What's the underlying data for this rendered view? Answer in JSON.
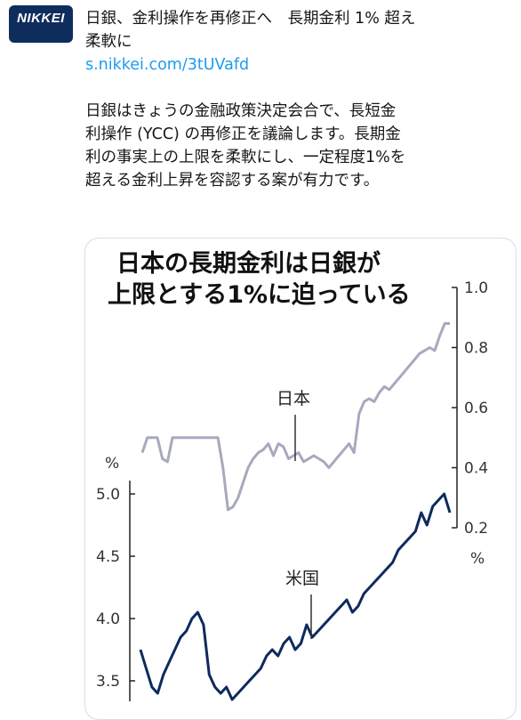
{
  "account": {
    "avatar_label": "NIKKEI"
  },
  "tweet": {
    "headline_line1": "日銀、金利操作を再修正へ　長期金利 1% 超え",
    "headline_line2": "柔軟に",
    "link": "s.nikkei.com/3tUVafd",
    "body_lines": [
      "日銀はきょうの金融政策決定会合で、長短金",
      "利操作 (YCC) の再修正を議論します。長期金",
      "利の事実上の上限を柔軟にし、一定程度1%を",
      "超える金利上昇を容認する案が有力です。"
    ]
  },
  "colors": {
    "japan_line": "#a7a9be",
    "us_line": "#0d2a5c",
    "brand": "#0f2d5c",
    "link": "#1d9bf0"
  },
  "chart_data": {
    "type": "line",
    "title_lines": [
      "日本の長期金利は日銀が",
      "上限とする1%に迫っている"
    ],
    "series": [
      {
        "name": "日本",
        "axis": "right",
        "values": [
          0.45,
          0.5,
          0.5,
          0.5,
          0.43,
          0.42,
          0.5,
          0.5,
          0.5,
          0.5,
          0.5,
          0.5,
          0.5,
          0.5,
          0.5,
          0.5,
          0.4,
          0.26,
          0.27,
          0.3,
          0.35,
          0.4,
          0.43,
          0.45,
          0.46,
          0.48,
          0.44,
          0.48,
          0.47,
          0.43,
          0.44,
          0.45,
          0.42,
          0.43,
          0.44,
          0.43,
          0.42,
          0.4,
          0.42,
          0.44,
          0.46,
          0.48,
          0.45,
          0.58,
          0.62,
          0.63,
          0.62,
          0.65,
          0.67,
          0.66,
          0.68,
          0.7,
          0.72,
          0.74,
          0.76,
          0.78,
          0.79,
          0.8,
          0.79,
          0.84,
          0.88,
          0.88
        ]
      },
      {
        "name": "米国",
        "axis": "left",
        "values": [
          3.75,
          3.6,
          3.45,
          3.4,
          3.55,
          3.65,
          3.75,
          3.85,
          3.9,
          4.0,
          4.05,
          3.95,
          3.55,
          3.45,
          3.4,
          3.45,
          3.35,
          3.4,
          3.45,
          3.5,
          3.55,
          3.6,
          3.7,
          3.75,
          3.7,
          3.8,
          3.85,
          3.75,
          3.8,
          3.95,
          3.85,
          3.9,
          3.95,
          4.0,
          4.05,
          4.1,
          4.15,
          4.05,
          4.1,
          4.2,
          4.25,
          4.3,
          4.35,
          4.4,
          4.45,
          4.55,
          4.6,
          4.65,
          4.7,
          4.85,
          4.75,
          4.9,
          4.95,
          5.0,
          4.85
        ]
      }
    ],
    "left_axis": {
      "unit": "%",
      "ticks": [
        "3.5",
        "4.0",
        "4.5",
        "5.0"
      ],
      "range": [
        3.3,
        5.2
      ]
    },
    "right_axis": {
      "unit": "%",
      "ticks": [
        "0.2",
        "0.4",
        "0.6",
        "0.8",
        "1.0"
      ],
      "range": [
        0.2,
        1.0
      ]
    }
  }
}
